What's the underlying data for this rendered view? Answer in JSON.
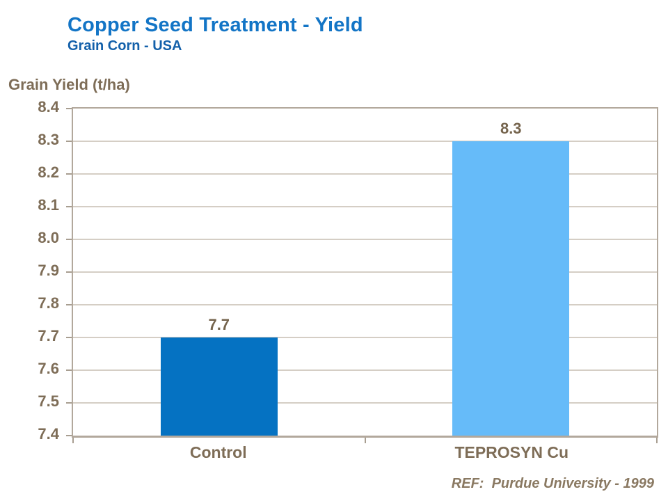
{
  "header": {
    "title": "Copper Seed Treatment - Yield",
    "subtitle": "Grain Corn - USA"
  },
  "footer": {
    "reference": "REF:  Purdue University - 1999"
  },
  "colors": {
    "title_blue": "#1375c6",
    "subtitle_blue": "#1360aa",
    "text_brown": "#7e6d57",
    "axis_line": "#b2a89c",
    "gridline": "#d5cec5",
    "bar_control": "#0572c2",
    "bar_teprosyn": "#66bbf9"
  },
  "chart_data": {
    "type": "bar",
    "title": "Copper Seed Treatment - Yield",
    "subtitle": "Grain Corn - USA",
    "ylabel": "Grain Yield (t/ha)",
    "xlabel": "",
    "categories": [
      "Control",
      "TEPROSYN Cu"
    ],
    "values": [
      7.7,
      8.3
    ],
    "data_labels": [
      "7.7",
      "8.3"
    ],
    "bar_colors": [
      "#0572c2",
      "#66bbf9"
    ],
    "ylim": [
      7.4,
      8.4
    ],
    "ytick_step": 0.1,
    "ytick_labels": [
      "8.4",
      "8.3",
      "8.2",
      "8.1",
      "8.0",
      "7.9",
      "7.8",
      "7.7",
      "7.6",
      "7.5",
      "7.4"
    ],
    "grid": true,
    "legend": "none",
    "reference": "REF:  Purdue University - 1999"
  }
}
